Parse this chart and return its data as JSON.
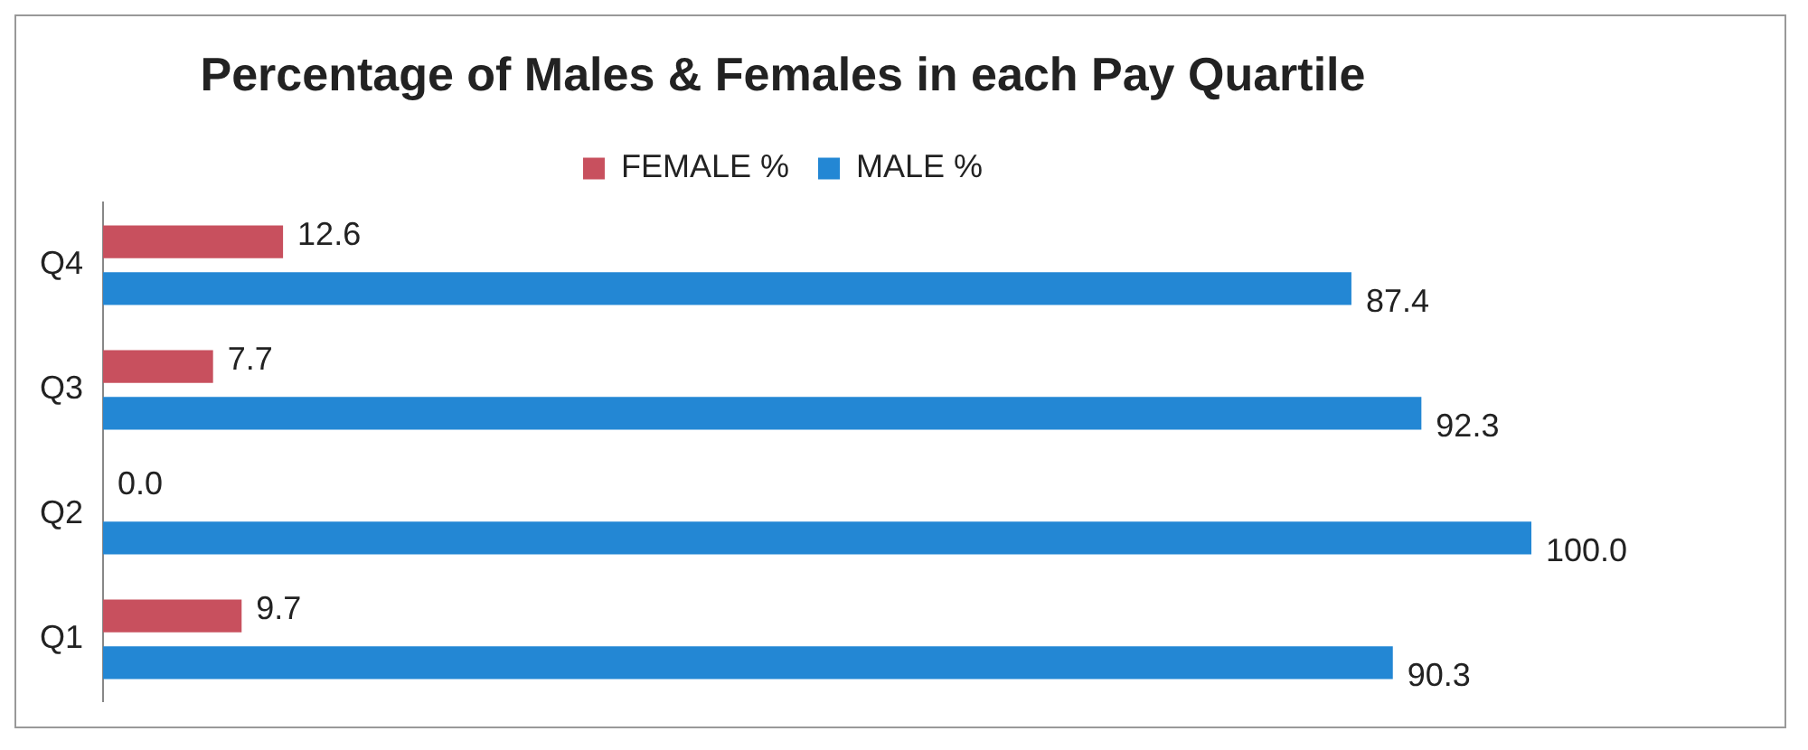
{
  "chart_data": {
    "type": "bar",
    "orientation": "horizontal",
    "title": "Percentage of Males & Females in each Pay Quartile",
    "categories": [
      "Q4",
      "Q3",
      "Q2",
      "Q1"
    ],
    "series": [
      {
        "name": "FEMALE %",
        "color": "#c8505e",
        "values": [
          12.6,
          7.7,
          0.0,
          9.7
        ],
        "value_labels": [
          "12.6",
          "7.7",
          "0.0",
          "9.7"
        ]
      },
      {
        "name": "MALE %",
        "color": "#2387d4",
        "values": [
          87.4,
          92.3,
          100.0,
          90.3
        ],
        "value_labels": [
          "87.4",
          "92.3",
          "100.0",
          "90.3"
        ]
      }
    ],
    "legend": "top"
  }
}
